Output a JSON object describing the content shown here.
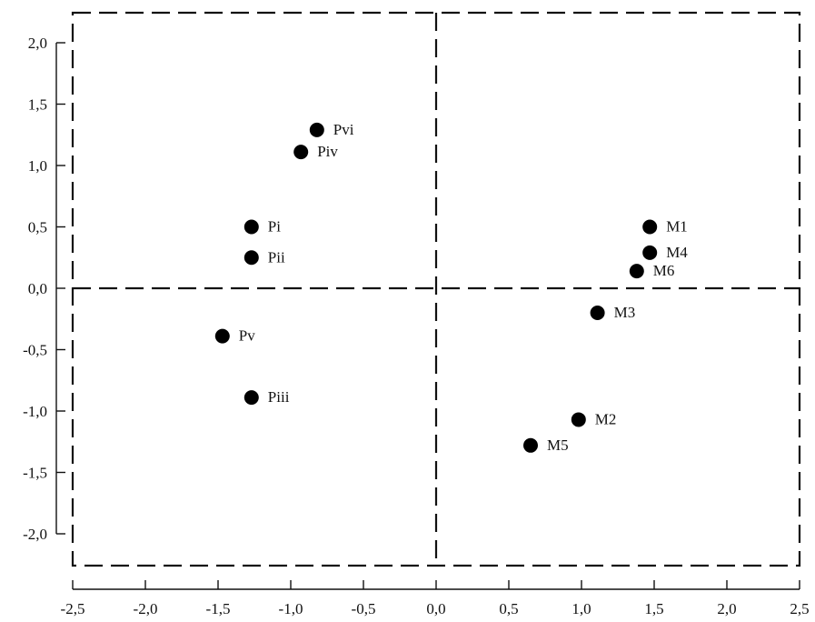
{
  "chart_data": {
    "type": "scatter",
    "title": "",
    "xlabel": "",
    "ylabel": "",
    "xlim": [
      -2.5,
      2.5
    ],
    "ylim": [
      -2.0,
      2.0
    ],
    "x_ticks": [
      -2.5,
      -2.0,
      -1.5,
      -1.0,
      -0.5,
      0.0,
      0.5,
      1.0,
      1.5,
      2.0,
      2.5
    ],
    "x_tick_labels": [
      "-2,5",
      "-2,0",
      "-1,5",
      "-1,0",
      "-0,5",
      "0,0",
      "0,5",
      "1,0",
      "1,5",
      "2,0",
      "2,5"
    ],
    "y_ticks": [
      2.0,
      1.5,
      1.0,
      0.5,
      0.0,
      -0.5,
      -1.0,
      -1.5,
      -2.0
    ],
    "y_tick_labels": [
      "2,0",
      "1,5",
      "1,0",
      "0,5",
      "0,0",
      "-0,5",
      "-1,0",
      "-1,5",
      "-2,0"
    ],
    "grid": false,
    "reference_lines": {
      "x": 0.0,
      "y": 0.0,
      "style": "dashed"
    },
    "points": [
      {
        "label": "Pvi",
        "x": -0.82,
        "y": 1.29
      },
      {
        "label": "Piv",
        "x": -0.93,
        "y": 1.11
      },
      {
        "label": "Pi",
        "x": -1.27,
        "y": 0.5
      },
      {
        "label": "Pii",
        "x": -1.27,
        "y": 0.25
      },
      {
        "label": "Pv",
        "x": -1.47,
        "y": -0.39
      },
      {
        "label": "Piii",
        "x": -1.27,
        "y": -0.89
      },
      {
        "label": "M1",
        "x": 1.47,
        "y": 0.5
      },
      {
        "label": "M4",
        "x": 1.47,
        "y": 0.29
      },
      {
        "label": "M6",
        "x": 1.38,
        "y": 0.14
      },
      {
        "label": "M3",
        "x": 1.11,
        "y": -0.2
      },
      {
        "label": "M2",
        "x": 0.98,
        "y": -1.07
      },
      {
        "label": "M5",
        "x": 0.65,
        "y": -1.28
      }
    ],
    "point_color": "#000000"
  }
}
